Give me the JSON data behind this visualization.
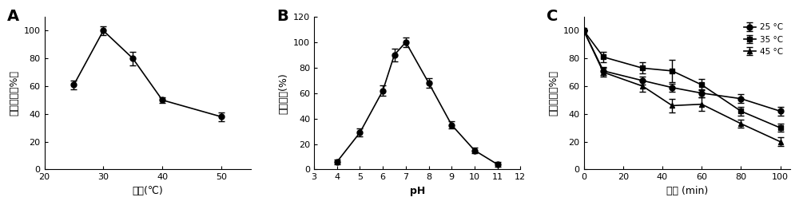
{
  "panel_A": {
    "label": "A",
    "x": [
      25,
      30,
      35,
      40,
      50
    ],
    "y": [
      61,
      100,
      80,
      50,
      38
    ],
    "yerr": [
      3,
      3,
      5,
      2,
      3
    ],
    "xlabel": "温度(℃)",
    "ylabel": "相对酶活（%）",
    "xlim": [
      20,
      55
    ],
    "ylim": [
      0,
      110
    ],
    "xticks": [
      20,
      30,
      40,
      50
    ],
    "yticks": [
      0,
      20,
      40,
      60,
      80,
      100
    ]
  },
  "panel_B": {
    "label": "B",
    "x": [
      4,
      5,
      6,
      6.5,
      7,
      8,
      9,
      10,
      11
    ],
    "y": [
      6,
      29,
      62,
      90,
      100,
      68,
      35,
      15,
      4
    ],
    "yerr": [
      2,
      3,
      4,
      5,
      4,
      4,
      3,
      2,
      2
    ],
    "xlabel": "pH",
    "ylabel": "相对酶活(%)",
    "xlim": [
      3,
      12
    ],
    "ylim": [
      0,
      120
    ],
    "xticks": [
      3,
      4,
      5,
      6,
      7,
      8,
      9,
      10,
      11,
      12
    ],
    "yticks": [
      0,
      20,
      40,
      60,
      80,
      100,
      120
    ]
  },
  "panel_C": {
    "label": "C",
    "xlabel": "时间 (min)",
    "ylabel": "相对酶活（%）",
    "xlim": [
      0,
      105
    ],
    "ylim": [
      0,
      110
    ],
    "xticks": [
      0,
      20,
      40,
      60,
      80,
      100
    ],
    "yticks": [
      0,
      20,
      40,
      60,
      80,
      100
    ],
    "series": [
      {
        "label": "25 °C",
        "marker": "o",
        "x": [
          0,
          10,
          30,
          45,
          60,
          80,
          100
        ],
        "y": [
          100,
          71,
          64,
          59,
          55,
          51,
          42
        ],
        "yerr": [
          0,
          3,
          3,
          3,
          3,
          3,
          3
        ]
      },
      {
        "label": "35 °C",
        "marker": "s",
        "x": [
          0,
          10,
          30,
          45,
          60,
          80,
          100
        ],
        "y": [
          100,
          81,
          73,
          71,
          61,
          42,
          30
        ],
        "yerr": [
          0,
          4,
          4,
          8,
          4,
          3,
          3
        ]
      },
      {
        "label": "45 °C",
        "marker": "^",
        "x": [
          0,
          10,
          30,
          45,
          60,
          80,
          100
        ],
        "y": [
          100,
          70,
          60,
          46,
          47,
          33,
          20
        ],
        "yerr": [
          0,
          3,
          4,
          5,
          5,
          3,
          3
        ]
      }
    ]
  },
  "line_color": "#000000",
  "marker_color": "#000000",
  "marker_size": 5,
  "linewidth": 1.2,
  "capsize": 3,
  "elinewidth": 1.0,
  "tick_fontsize": 8,
  "label_fontsize": 9,
  "panel_label_fontsize": 14
}
